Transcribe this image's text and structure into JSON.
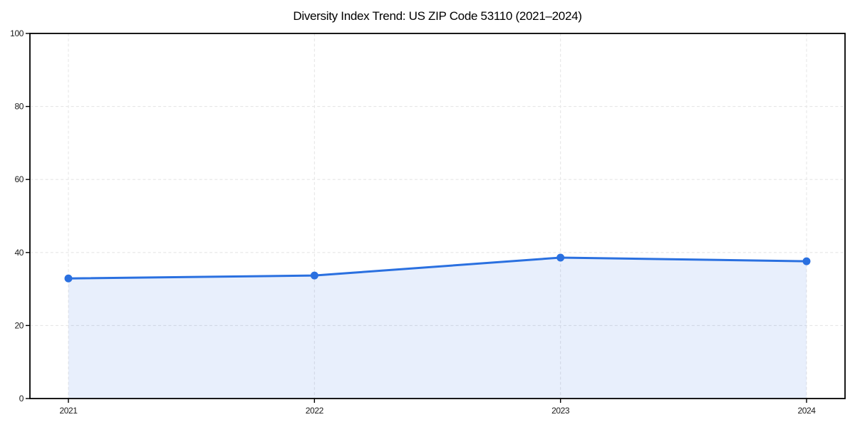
{
  "chart_data": {
    "type": "area",
    "title": "Diversity Index Trend: US ZIP Code 53110 (2021–2024)",
    "categories": [
      "2021",
      "2022",
      "2023",
      "2024"
    ],
    "values": [
      32.9,
      33.7,
      38.6,
      37.6
    ],
    "xlabel": "",
    "ylabel": "",
    "ylim": [
      0,
      100
    ],
    "yticks": [
      0,
      20,
      40,
      60,
      80,
      100
    ],
    "grid": {
      "style": "dashed",
      "axes": "both",
      "on": true
    },
    "legend": "none",
    "marker": "circle",
    "colors": {
      "line": "#2a70e0",
      "marker": "#2a70e0",
      "fill": "#2a70e0",
      "fill_opacity": 0.11,
      "grid": "#e6e6e6",
      "spine": "#000000",
      "tick_label": "#1a1a1a",
      "title": "#000000",
      "background": "#ffffff"
    }
  }
}
